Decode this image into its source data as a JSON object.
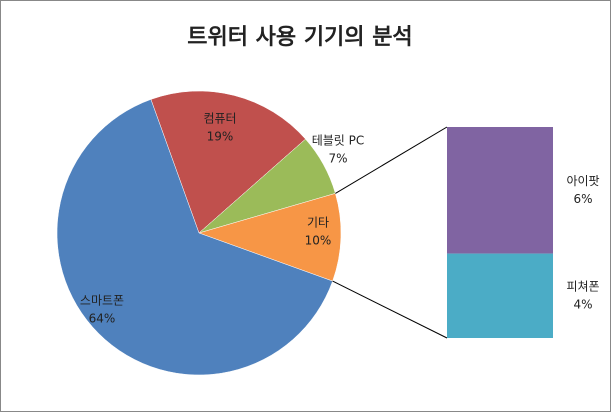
{
  "chart_data": {
    "type": "pie",
    "title": "트위터 사용 기기의 분석",
    "categories": [
      "컴퓨터",
      "테블릿 PC",
      "기타",
      "스마트폰"
    ],
    "values": [
      19,
      7,
      10,
      64
    ],
    "value_labels": [
      "19%",
      "7%",
      "10%",
      "64%"
    ],
    "colors": [
      "#c0504d",
      "#9bbb59",
      "#f79646",
      "#4f81bd"
    ],
    "breakdown": {
      "categories": [
        "아이팟",
        "피쳐폰"
      ],
      "values": [
        6,
        4
      ],
      "value_labels": [
        "6%",
        "4%"
      ],
      "colors": [
        "#8064a2",
        "#4bacc6"
      ]
    }
  }
}
